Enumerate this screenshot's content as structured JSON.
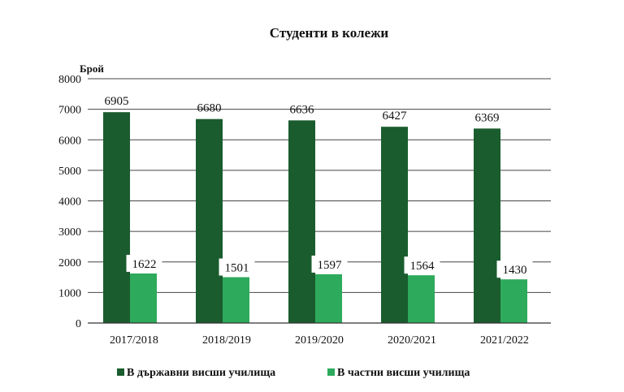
{
  "chart_data": {
    "type": "bar",
    "title": "Студенти в колежи",
    "ylabel": "Брой",
    "xlabel": "",
    "categories": [
      "2017/2018",
      "2018/2019",
      "2019/2020",
      "2020/2021",
      "2021/2022"
    ],
    "series": [
      {
        "name": "В държавни висши училища",
        "values": [
          6905,
          6680,
          6636,
          6427,
          6369
        ],
        "color": "#1a5c2e"
      },
      {
        "name": "В частни висши училища",
        "values": [
          1622,
          1501,
          1597,
          1564,
          1430
        ],
        "color": "#2eaa5c"
      }
    ],
    "ylim": [
      0,
      8000
    ],
    "yticks": [
      "0",
      "1000",
      "2000",
      "3000",
      "4000",
      "5000",
      "6000",
      "7000",
      "8000"
    ],
    "grid": true,
    "legend_position": "bottom"
  }
}
